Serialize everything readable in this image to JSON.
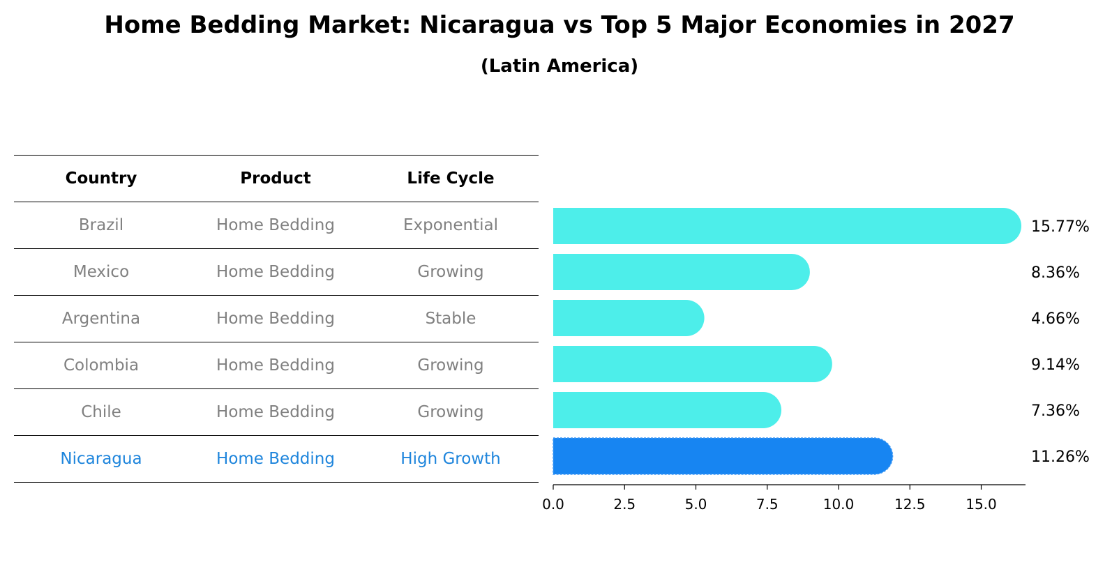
{
  "title": "Home Bedding Market: Nicaragua vs Top 5 Major Economies in 2027",
  "subtitle": "(Latin America)",
  "table": {
    "headers": [
      "Country",
      "Product",
      "Life Cycle"
    ],
    "rows": [
      {
        "country": "Brazil",
        "product": "Home Bedding",
        "life_cycle": "Exponential"
      },
      {
        "country": "Mexico",
        "product": "Home Bedding",
        "life_cycle": "Growing"
      },
      {
        "country": "Argentina",
        "product": "Home Bedding",
        "life_cycle": "Stable"
      },
      {
        "country": "Colombia",
        "product": "Home Bedding",
        "life_cycle": "Growing"
      },
      {
        "country": "Chile",
        "product": "Home Bedding",
        "life_cycle": "Growing"
      },
      {
        "country": "Nicaragua",
        "product": "Home Bedding",
        "life_cycle": "High Growth"
      }
    ]
  },
  "chart_data": {
    "type": "bar",
    "orientation": "horizontal",
    "categories": [
      "Brazil",
      "Mexico",
      "Argentina",
      "Colombia",
      "Chile",
      "Nicaragua"
    ],
    "values": [
      15.77,
      8.36,
      4.66,
      9.14,
      7.36,
      11.26
    ],
    "value_labels": [
      "15.77%",
      "8.36%",
      "4.66%",
      "9.14%",
      "7.36%",
      "11.26%"
    ],
    "highlight_category": "Nicaragua",
    "xlim": [
      0,
      16.5
    ],
    "xticks": [
      0.0,
      2.5,
      5.0,
      7.5,
      10.0,
      12.5,
      15.0
    ],
    "xtick_labels": [
      "0.0",
      "2.5",
      "5.0",
      "7.5",
      "10.0",
      "12.5",
      "15.0"
    ],
    "colors": {
      "default": "#4deeea",
      "highlight": "#1785f2",
      "highlight_text": "#1e85dc",
      "muted_text": "#808080"
    },
    "grid": false
  }
}
